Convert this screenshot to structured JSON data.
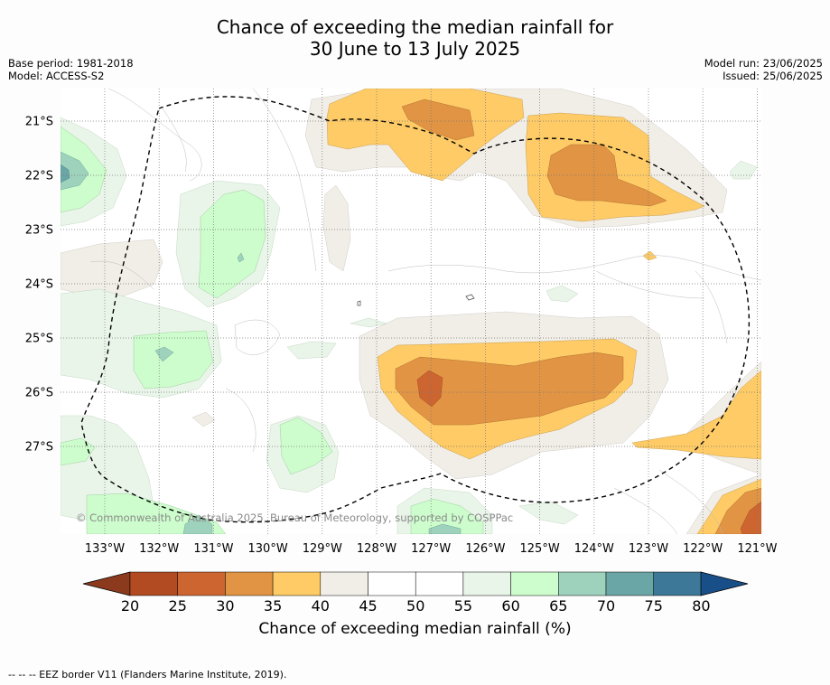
{
  "title": {
    "line1": "Chance of exceeding the median rainfall for",
    "line2": "30 June to 13 July 2025"
  },
  "meta": {
    "base_period": "Base period: 1981-2018",
    "model": "Model: ACCESS-S2",
    "model_run": "Model run: 23/06/2025",
    "issued": "Issued: 25/06/2025"
  },
  "map": {
    "lat_labels": [
      "21°S",
      "22°S",
      "23°S",
      "24°S",
      "25°S",
      "26°S",
      "27°S"
    ],
    "lon_labels": [
      "133°W",
      "132°W",
      "131°W",
      "130°W",
      "129°W",
      "128°W",
      "127°W",
      "126°W",
      "125°W",
      "124°W",
      "123°W",
      "122°W",
      "121°W"
    ],
    "copyright": "© Commonwealth of Australia 2025, Bureau of Meteorology, supported by COSPPac"
  },
  "colorbar": {
    "tick_labels": [
      "20",
      "25",
      "30",
      "35",
      "40",
      "45",
      "50",
      "55",
      "60",
      "65",
      "70",
      "75",
      "80"
    ],
    "colors": [
      "#b24a22",
      "#cd6530",
      "#e19443",
      "#fecb66",
      "#f1ede7",
      "#ffffff",
      "#ffffff",
      "#eaf5ea",
      "#cdfdcd",
      "#9ed2bc",
      "#6aa6a6",
      "#3e7898"
    ],
    "below_color": "#8c3a1e",
    "above_color": "#184f88",
    "label": "Chance of exceeding median rainfall (%)"
  },
  "footnote": "--  --  -- EEZ border V11 (Flanders Marine Institute, 2019)."
}
